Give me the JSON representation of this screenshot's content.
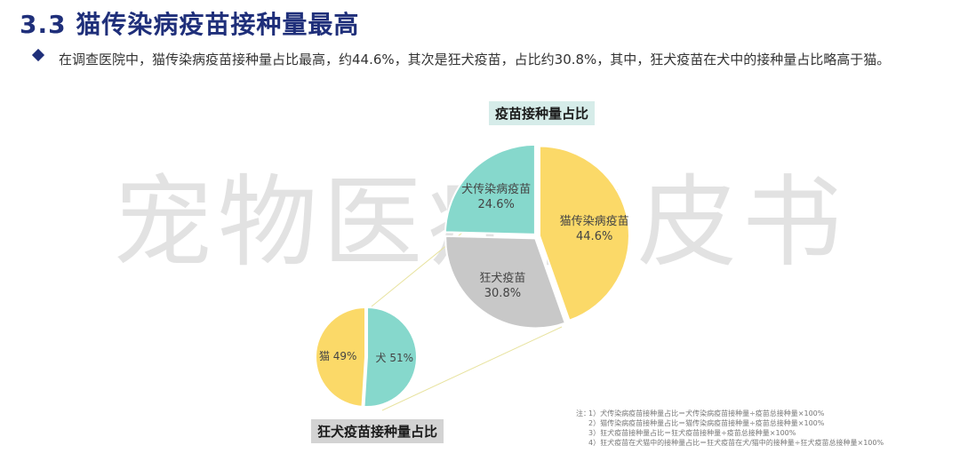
{
  "page": {
    "title": "3.3 猫传染病疫苗接种量最高",
    "bullet_text": "在调查医院中，猫传染病疫苗接种量占比最高，约44.6%，其次是狂犬疫苗，占比约30.8%，其中，狂犬疫苗在犬中的接种量占比略高于猫。",
    "watermark": "宠物医疗白皮书"
  },
  "chart_data": [
    {
      "type": "pie",
      "title": "疫苗接种量占比",
      "slices": [
        {
          "label": "猫传染病疫苗",
          "value": 44.6,
          "display": "44.6%",
          "color": "#fbd968"
        },
        {
          "label": "狂犬疫苗",
          "value": 30.8,
          "display": "30.8%",
          "color": "#c8c8c8"
        },
        {
          "label": "犬传染病疫苗",
          "value": 24.6,
          "display": "24.6%",
          "color": "#86d8cc"
        }
      ]
    },
    {
      "type": "pie",
      "title": "狂犬疫苗接种量占比",
      "slices": [
        {
          "label": "犬",
          "value": 51,
          "display": "51%",
          "color": "#86d8cc"
        },
        {
          "label": "猫",
          "value": 49,
          "display": "49%",
          "color": "#fbd968"
        }
      ]
    }
  ],
  "notes": {
    "prefix": "注：",
    "lines": [
      "1）犬传染病疫苗接种量占比＝犬传染病疫苗接种量÷疫苗总接种量×100%",
      "2）猫传染病疫苗接种量占比＝猫传染病疫苗接种量÷疫苗总接种量×100%",
      "3）狂犬疫苗接种量占比＝狂犬疫苗接种量÷疫苗总接种量×100%",
      "4）狂犬疫苗在犬猫中的接种量占比＝狂犬疫苗在犬/猫中的接种量÷狂犬疫苗总接种量×100%"
    ]
  }
}
